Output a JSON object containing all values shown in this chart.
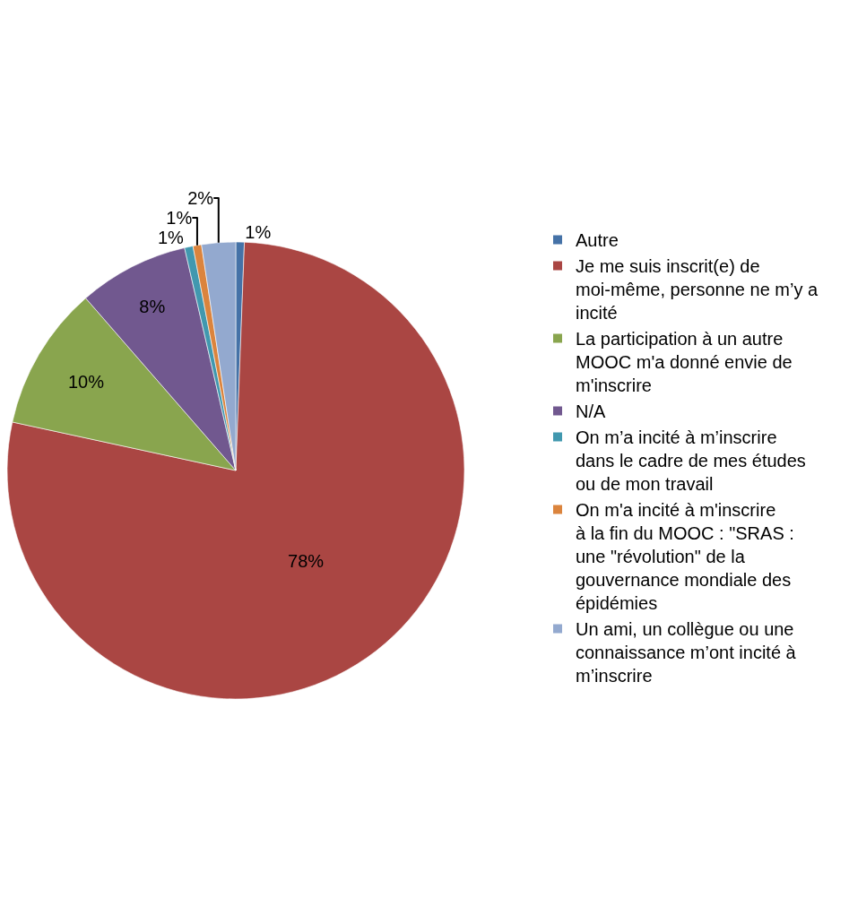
{
  "chart_data": {
    "type": "pie",
    "categories": [
      "Autre",
      "Je me suis inscrit(e) de moi-même, personne ne m’y a incité",
      "La participation à un autre MOOC m'a donné envie de m'inscrire",
      "N/A",
      "On m’a incité à m’inscrire dans le cadre de mes études ou de mon travail",
      "On m'a incité à m'inscrire à la fin du MOOC : \"SRAS : une \"révolution\" de la gouvernance mondiale des épidémies",
      "Un ami, un collègue ou une connaissance m’ont incité à m’inscrire"
    ],
    "values": [
      0.6,
      77.8,
      10.2,
      7.8,
      0.6,
      0.6,
      2.4
    ],
    "colors": [
      "#4572a7",
      "#aa4643",
      "#89a54e",
      "#71588f",
      "#4198af",
      "#db843d",
      "#93a9cf"
    ],
    "value_labels": [
      "1%",
      "78%",
      "10%",
      "8%",
      "1%",
      "1%",
      "2%"
    ],
    "legend": "right"
  }
}
